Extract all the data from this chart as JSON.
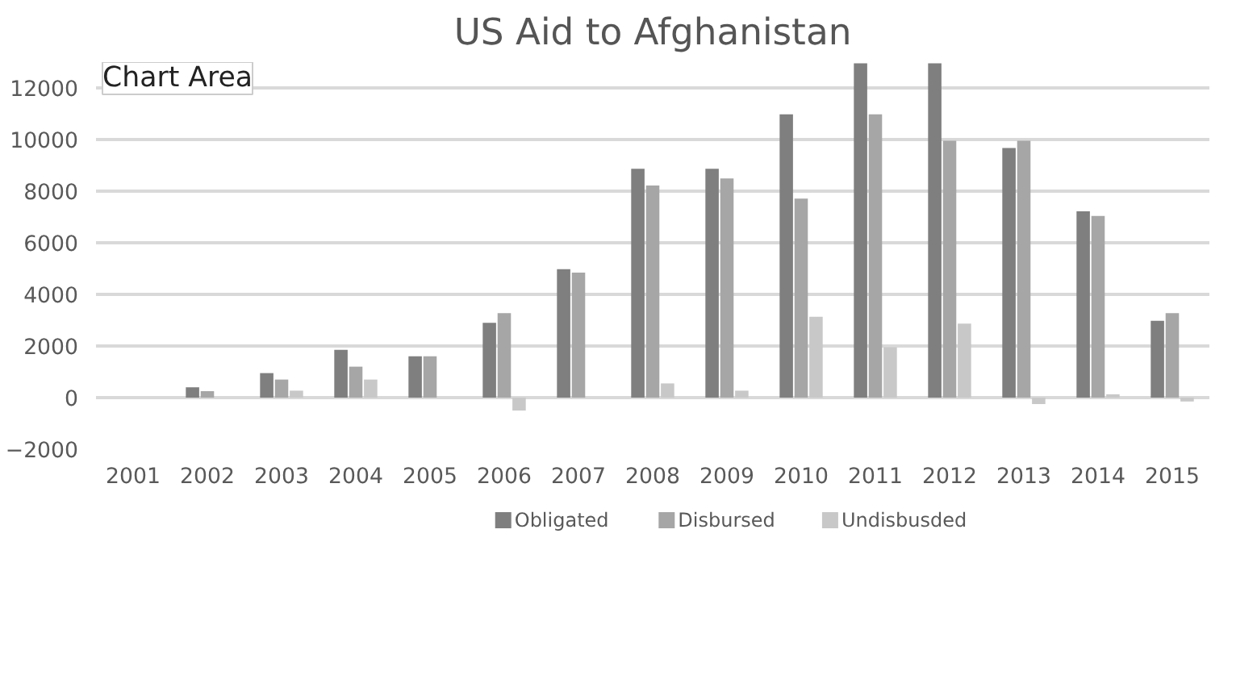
{
  "chart_data": {
    "type": "bar",
    "title": "US Aid to Afghanistan",
    "categories": [
      "2001",
      "2002",
      "2003",
      "2004",
      "2005",
      "2006",
      "2007",
      "2008",
      "2009",
      "2010",
      "2011",
      "2012",
      "2013",
      "2014",
      "2015"
    ],
    "series": [
      {
        "name": "Obligated",
        "color": "#7f7f7f",
        "values": [
          0,
          400,
          950,
          1850,
          1600,
          2900,
          4980,
          8870,
          8870,
          10980,
          12950,
          12950,
          9670,
          7220,
          2980
        ]
      },
      {
        "name": "Disbursed",
        "color": "#a6a6a6",
        "values": [
          0,
          250,
          700,
          1200,
          1600,
          3270,
          4840,
          8220,
          8490,
          7710,
          10980,
          9950,
          9950,
          7040,
          3270
        ]
      },
      {
        "name": "Undisbusded",
        "color": "#c8c8c8",
        "values": [
          0,
          0,
          270,
          700,
          0,
          -500,
          0,
          550,
          270,
          3130,
          1950,
          2870,
          -250,
          130,
          -150
        ]
      }
    ],
    "ylim": [
      -2000,
      13000
    ],
    "yticks": [
      -2000,
      0,
      2000,
      4000,
      6000,
      8000,
      10000,
      12000
    ],
    "grid": "y",
    "legend": "bottom",
    "annotations": [
      "Chart Area"
    ]
  }
}
